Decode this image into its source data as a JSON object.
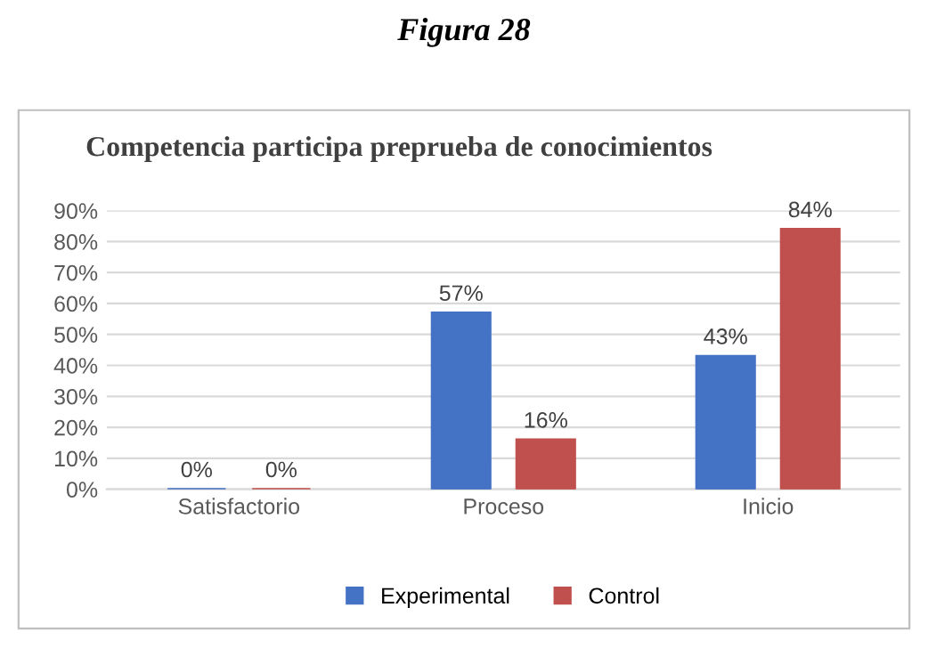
{
  "chart_data": {
    "type": "bar",
    "title": "Competencia participa preprueba de conocimientos",
    "annotations": [
      "Figura 28"
    ],
    "categories": [
      "Satisfactorio",
      "Proceso",
      "Inicio"
    ],
    "series": [
      {
        "name": "Experimental",
        "color": "#4472c4",
        "values": [
          0,
          57,
          43
        ],
        "value_labels": [
          "0%",
          "57%",
          "43%"
        ]
      },
      {
        "name": "Control",
        "color": "#c0504d",
        "values": [
          0,
          16,
          84
        ],
        "value_labels": [
          "0%",
          "16%",
          "84%"
        ]
      }
    ],
    "ylim": [
      0,
      90
    ],
    "yticks": [
      {
        "value": 0,
        "label": "0%"
      },
      {
        "value": 10,
        "label": "10%"
      },
      {
        "value": 20,
        "label": "20%"
      },
      {
        "value": 30,
        "label": "30%"
      },
      {
        "value": 40,
        "label": "40%"
      },
      {
        "value": 50,
        "label": "50%"
      },
      {
        "value": 60,
        "label": "60%"
      },
      {
        "value": 70,
        "label": "70%"
      },
      {
        "value": 80,
        "label": "80%"
      },
      {
        "value": 90,
        "label": "90%"
      }
    ],
    "grid": "y",
    "legend": "bottom"
  }
}
